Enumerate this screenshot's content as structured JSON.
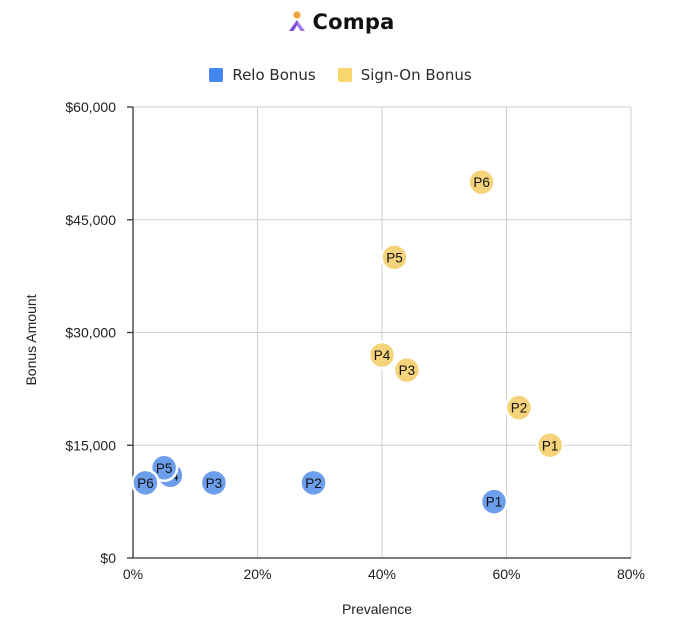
{
  "brand": {
    "name": "Compa",
    "logo_icon": "compa-logo-icon",
    "logo_colors": [
      "#F2A23A",
      "#7C4DDB",
      "#A07BE8"
    ]
  },
  "chart_data": {
    "type": "scatter",
    "title": "",
    "xlabel": "Prevalence",
    "ylabel": "Bonus Amount",
    "xlim": [
      0,
      0.8
    ],
    "ylim": [
      0,
      60000
    ],
    "x_ticks": [
      0,
      0.2,
      0.4,
      0.6,
      0.8
    ],
    "x_tick_labels": [
      "0%",
      "20%",
      "40%",
      "60%",
      "80%"
    ],
    "y_ticks": [
      0,
      15000,
      30000,
      45000,
      60000
    ],
    "y_tick_labels": [
      "$0",
      "$15,000",
      "$30,000",
      "$45,000",
      "$60,000"
    ],
    "grid": true,
    "legend_position": "top-center",
    "series": [
      {
        "name": "Relo Bonus",
        "color": "#4285F4",
        "marker_color": "#6D9EEB",
        "points": [
          {
            "label": "P1",
            "x": 0.58,
            "y": 7500
          },
          {
            "label": "P2",
            "x": 0.29,
            "y": 10000
          },
          {
            "label": "P3",
            "x": 0.13,
            "y": 10000
          },
          {
            "label": "P4",
            "x": 0.06,
            "y": 11000
          },
          {
            "label": "P5",
            "x": 0.05,
            "y": 12000
          },
          {
            "label": "P6",
            "x": 0.02,
            "y": 10000
          }
        ]
      },
      {
        "name": "Sign-On Bonus",
        "color": "#F9D56E",
        "marker_color": "#F5D37A",
        "points": [
          {
            "label": "P1",
            "x": 0.67,
            "y": 15000
          },
          {
            "label": "P2",
            "x": 0.62,
            "y": 20000
          },
          {
            "label": "P3",
            "x": 0.44,
            "y": 25000
          },
          {
            "label": "P4",
            "x": 0.4,
            "y": 27000
          },
          {
            "label": "P5",
            "x": 0.42,
            "y": 40000
          },
          {
            "label": "P6",
            "x": 0.56,
            "y": 50000
          }
        ]
      }
    ]
  }
}
